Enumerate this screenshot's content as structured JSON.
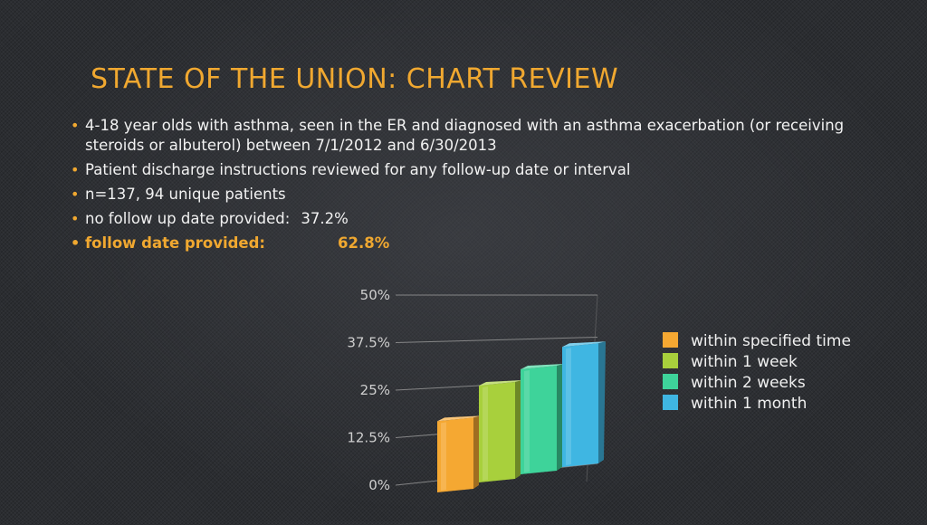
{
  "slide": {
    "title": "STATE OF THE UNION: CHART REVIEW",
    "bullets": [
      {
        "text": "4-18 year olds with asthma, seen in the ER and diagnosed with an asthma exacerbation (or receiving steroids or albuterol) between 7/1/2012 and 6/30/2013"
      },
      {
        "text": "Patient discharge instructions reviewed for any follow-up date or interval"
      },
      {
        "text": "n=137, 94 unique patients"
      },
      {
        "label": "no follow up date provided:",
        "value": "37.2%"
      },
      {
        "label": "follow date provided:",
        "value": "62.8%",
        "highlight": true
      }
    ]
  },
  "colors": {
    "accent": "#f0a830",
    "text": "#f2f2f2",
    "background": "#2b2d31"
  },
  "chart_data": {
    "type": "bar",
    "style": "3d-columns",
    "categories": [
      "within specified time",
      "within 1 week",
      "within 2 weeks",
      "within 1 month"
    ],
    "values": [
      17,
      26,
      30,
      36
    ],
    "colors": [
      "#f5a832",
      "#a8d03c",
      "#3ed39a",
      "#3fb6e2"
    ],
    "ylim": [
      0,
      50
    ],
    "yticks": [
      "0%",
      "12.5%",
      "25%",
      "37.5%",
      "50%"
    ],
    "ytick_values": [
      0,
      12.5,
      25,
      37.5,
      50
    ],
    "grid": true,
    "legend": "right"
  }
}
